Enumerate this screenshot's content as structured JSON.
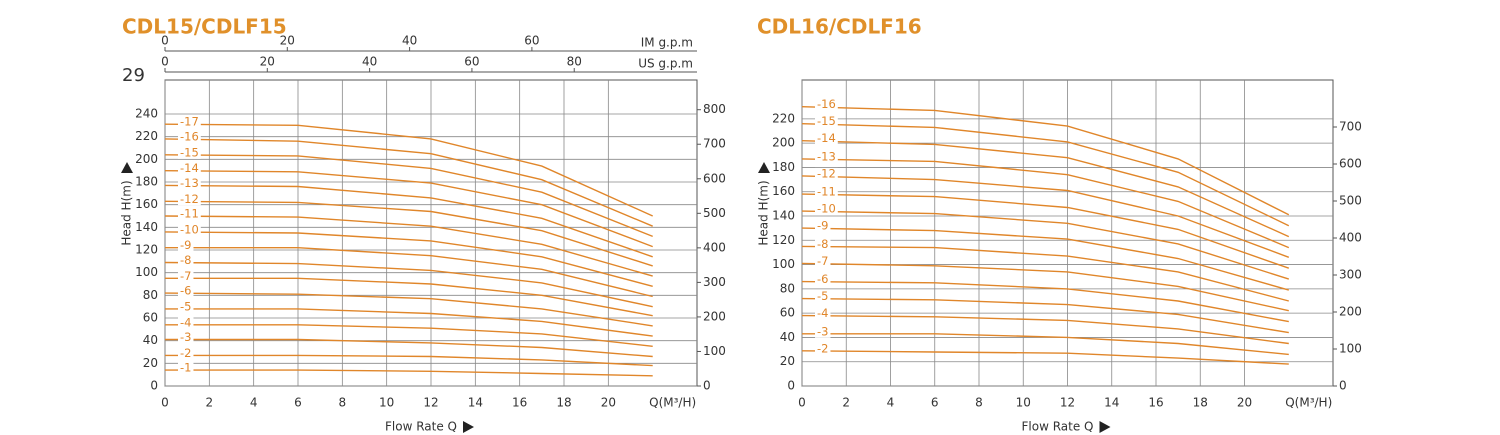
{
  "page_number": "29",
  "chart_data": [
    {
      "type": "line",
      "title": "CDL15/CDLF15",
      "x_label": "Flow Rate Q",
      "x_unit_label": "Q(M³/H)",
      "y_label": "Head H(m)",
      "color": "#e0862a",
      "grid": true,
      "xlim": [
        0,
        24
      ],
      "xticks": [
        0,
        2,
        4,
        6,
        8,
        10,
        12,
        14,
        16,
        18,
        20
      ],
      "ylim": [
        0,
        270
      ],
      "yticks": [
        0,
        20,
        40,
        60,
        80,
        100,
        120,
        140,
        160,
        180,
        200,
        220,
        240
      ],
      "y2lim": [
        0,
        886
      ],
      "y2ticks": [
        0,
        100,
        200,
        300,
        400,
        500,
        600,
        700,
        800
      ],
      "top_axes": [
        {
          "label": "IM g.p.m",
          "lim": [
            0,
            87
          ],
          "ticks": [
            0,
            20,
            40,
            60
          ]
        },
        {
          "label": "US g.p.m",
          "lim": [
            0,
            104
          ],
          "ticks": [
            0,
            20,
            40,
            60,
            80
          ]
        }
      ],
      "x": [
        0,
        6,
        12,
        17,
        22
      ],
      "series": [
        {
          "name": "-1",
          "values": [
            14,
            14,
            13,
            11,
            9
          ]
        },
        {
          "name": "-2",
          "values": [
            27,
            27,
            26,
            23,
            18
          ]
        },
        {
          "name": "-3",
          "values": [
            41,
            41,
            38,
            34,
            26
          ]
        },
        {
          "name": "-4",
          "values": [
            54,
            54,
            51,
            46,
            35
          ]
        },
        {
          "name": "-5",
          "values": [
            68,
            68,
            64,
            57,
            44
          ]
        },
        {
          "name": "-6",
          "values": [
            82,
            81,
            77,
            68,
            53
          ]
        },
        {
          "name": "-7",
          "values": [
            95,
            95,
            90,
            80,
            62
          ]
        },
        {
          "name": "-8",
          "values": [
            109,
            108,
            102,
            91,
            70
          ]
        },
        {
          "name": "-9",
          "values": [
            122,
            122,
            115,
            103,
            79
          ]
        },
        {
          "name": "-10",
          "values": [
            136,
            135,
            128,
            114,
            88
          ]
        },
        {
          "name": "-11",
          "values": [
            150,
            149,
            141,
            125,
            97
          ]
        },
        {
          "name": "-12",
          "values": [
            163,
            162,
            154,
            137,
            106
          ]
        },
        {
          "name": "-13",
          "values": [
            177,
            176,
            166,
            148,
            114
          ]
        },
        {
          "name": "-14",
          "values": [
            190,
            189,
            179,
            160,
            123
          ]
        },
        {
          "name": "-15",
          "values": [
            204,
            203,
            192,
            171,
            132
          ]
        },
        {
          "name": "-16",
          "values": [
            218,
            216,
            205,
            182,
            141
          ]
        },
        {
          "name": "-17",
          "values": [
            231,
            230,
            218,
            194,
            150
          ]
        }
      ]
    },
    {
      "type": "line",
      "title": "CDL16/CDLF16",
      "x_label": "Flow Rate Q",
      "x_unit_label": "Q(M³/H)",
      "y_label": "Head H(m)",
      "color": "#e0862a",
      "grid": true,
      "xlim": [
        0,
        24
      ],
      "xticks": [
        0,
        2,
        4,
        6,
        8,
        10,
        12,
        14,
        16,
        18,
        20
      ],
      "ylim": [
        0,
        252
      ],
      "yticks": [
        0,
        20,
        40,
        60,
        80,
        100,
        120,
        140,
        160,
        180,
        200,
        220
      ],
      "y2lim": [
        0,
        827
      ],
      "y2ticks": [
        0,
        100,
        200,
        300,
        400,
        500,
        600,
        700
      ],
      "x": [
        0,
        6,
        12,
        17,
        22
      ],
      "series": [
        {
          "name": "-2",
          "values": [
            29,
            28,
            27,
            23,
            18
          ]
        },
        {
          "name": "-3",
          "values": [
            43,
            43,
            40,
            35,
            26
          ]
        },
        {
          "name": "-4",
          "values": [
            58,
            57,
            54,
            47,
            35
          ]
        },
        {
          "name": "-5",
          "values": [
            72,
            71,
            67,
            59,
            44
          ]
        },
        {
          "name": "-6",
          "values": [
            86,
            85,
            80,
            70,
            53
          ]
        },
        {
          "name": "-7",
          "values": [
            101,
            99,
            94,
            82,
            62
          ]
        },
        {
          "name": "-8",
          "values": [
            115,
            114,
            107,
            94,
            70
          ]
        },
        {
          "name": "-9",
          "values": [
            130,
            128,
            121,
            105,
            79
          ]
        },
        {
          "name": "-10",
          "values": [
            144,
            142,
            134,
            117,
            88
          ]
        },
        {
          "name": "-11",
          "values": [
            158,
            156,
            147,
            129,
            97
          ]
        },
        {
          "name": "-12",
          "values": [
            173,
            170,
            161,
            140,
            106
          ]
        },
        {
          "name": "-13",
          "values": [
            187,
            185,
            174,
            152,
            114
          ]
        },
        {
          "name": "-14",
          "values": [
            202,
            199,
            188,
            164,
            123
          ]
        },
        {
          "name": "-15",
          "values": [
            216,
            213,
            201,
            176,
            132
          ]
        },
        {
          "name": "-16",
          "values": [
            230,
            227,
            214,
            187,
            141
          ]
        }
      ]
    }
  ]
}
